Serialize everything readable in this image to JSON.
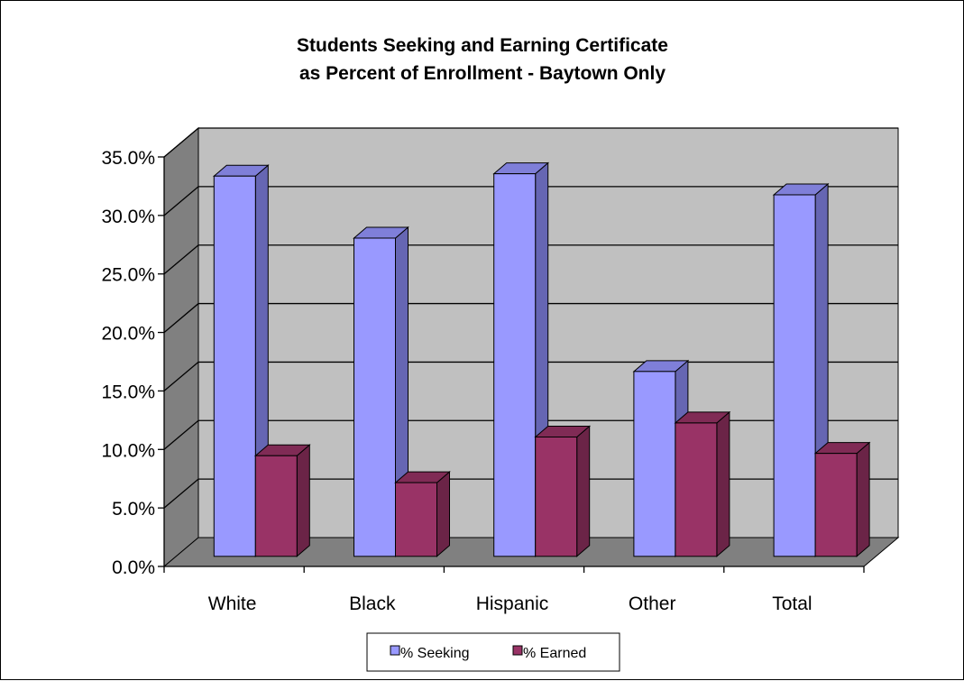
{
  "chart_data": {
    "type": "bar",
    "title": [
      "Students Seeking and Earning Certificate",
      "as Percent of Enrollment - Baytown Only"
    ],
    "categories": [
      "White",
      "Black",
      "Hispanic",
      "Other",
      "Total"
    ],
    "series": [
      {
        "name": "% Seeking",
        "values": [
          32.5,
          27.2,
          32.7,
          15.8,
          30.9
        ],
        "color": "#9999ff",
        "side_color": "#6666b3",
        "top_color": "#7f7fd9"
      },
      {
        "name": "% Earned",
        "values": [
          8.6,
          6.3,
          10.2,
          11.4,
          8.8
        ],
        "color": "#993366",
        "side_color": "#6b2447",
        "top_color": "#802b55"
      }
    ],
    "y_ticks": [
      "0.0%",
      "5.0%",
      "10.0%",
      "15.0%",
      "20.0%",
      "25.0%",
      "30.0%",
      "35.0%"
    ],
    "ylim": [
      0,
      35
    ],
    "grid": true,
    "legend_position": "bottom",
    "wall_color": "#c0c0c0",
    "floor_color": "#808080"
  }
}
